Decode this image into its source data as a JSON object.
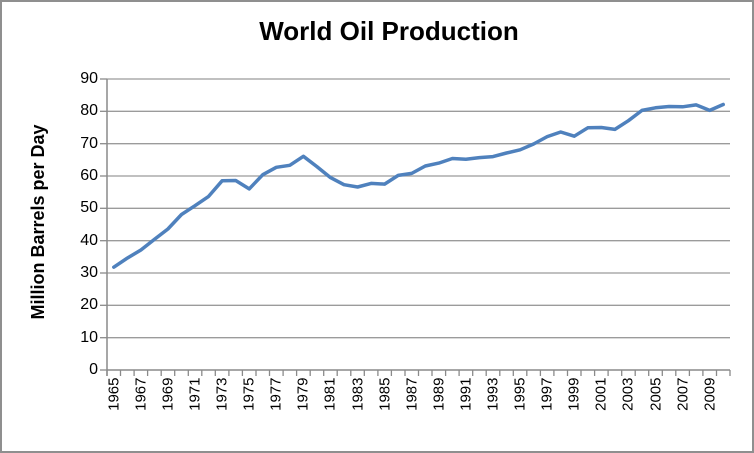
{
  "title": "World Oil Production",
  "y_axis": {
    "title": "Million Barrels per Day",
    "tick_labels": [
      "90",
      "80",
      "70",
      "60",
      "50",
      "40",
      "30",
      "20",
      "10",
      "0"
    ]
  },
  "x_axis": {
    "tick_labels": [
      "1965",
      "1967",
      "1969",
      "1971",
      "1973",
      "1975",
      "1977",
      "1979",
      "1981",
      "1983",
      "1985",
      "1987",
      "1989",
      "1991",
      "1993",
      "1995",
      "1997",
      "1999",
      "2001",
      "2003",
      "2005",
      "2007",
      "2009"
    ]
  },
  "chart_data": {
    "type": "line",
    "title": "World Oil Production",
    "xlabel": "",
    "ylabel": "Million Barrels per Day",
    "x": [
      1965,
      1966,
      1967,
      1968,
      1969,
      1970,
      1971,
      1972,
      1973,
      1974,
      1975,
      1976,
      1977,
      1978,
      1979,
      1980,
      1981,
      1982,
      1983,
      1984,
      1985,
      1986,
      1987,
      1988,
      1989,
      1990,
      1991,
      1992,
      1993,
      1994,
      1995,
      1996,
      1997,
      1998,
      1999,
      2000,
      2001,
      2002,
      2003,
      2004,
      2005,
      2006,
      2007,
      2008,
      2009,
      2010
    ],
    "values": [
      31.8,
      34.6,
      37.1,
      40.4,
      43.6,
      48.1,
      50.8,
      53.7,
      58.5,
      58.6,
      56.0,
      60.4,
      62.7,
      63.3,
      66.1,
      62.9,
      59.5,
      57.3,
      56.6,
      57.7,
      57.5,
      60.2,
      60.8,
      63.1,
      64.0,
      65.4,
      65.2,
      65.7,
      66.0,
      67.1,
      68.1,
      69.9,
      72.2,
      73.6,
      72.3,
      74.9,
      75.0,
      74.4,
      77.1,
      80.3,
      81.1,
      81.5,
      81.4,
      82.0,
      80.3,
      82.1
    ],
    "ylim": [
      0,
      90
    ],
    "y_tick_step": 10,
    "x_labeled_years_step": 2,
    "grid": "horizontal",
    "legend": "none"
  },
  "colors": {
    "line": "#4F81BD",
    "gridline": "#9B9B9B",
    "axis": "#8A8A8A",
    "border": "#8F8F8F",
    "background": "#FFFFFF",
    "text": "#000000"
  }
}
